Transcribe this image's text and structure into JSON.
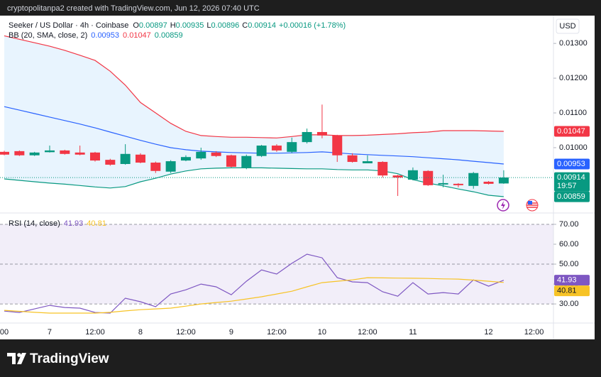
{
  "header": {
    "caption": "cryptopolitanpa2 created with TradingView.com, Jun 12, 2026 07:40 UTC"
  },
  "footer": {
    "brand": "TradingView"
  },
  "chart_data": [
    {
      "type": "candlestick",
      "title": "Seeker / US Dollar · 4h · Coinbase",
      "currency": "USD",
      "ohlc_labels": [
        "O",
        "H",
        "L",
        "C"
      ],
      "change": "+0.00016 (+1.78%)",
      "countdown": "19:57",
      "indicator": "BB (20, SMA, close, 2)",
      "up_color": "#089981",
      "down_color": "#f23645",
      "categories": [
        "00",
        null,
        null,
        "7",
        null,
        null,
        "12:00",
        null,
        null,
        "8",
        null,
        null,
        "12:00",
        null,
        null,
        "9",
        null,
        null,
        "12:00",
        null,
        null,
        "10",
        null,
        null,
        "12:00",
        null,
        null,
        "11",
        null,
        null,
        null,
        null,
        "12",
        null,
        null,
        "12:00"
      ],
      "open": [
        0.00988,
        0.0099,
        0.00978,
        0.00987,
        0.00992,
        0.00986,
        0.00986,
        0.00965,
        0.00953,
        0.0098,
        0.00957,
        0.00931,
        0.00963,
        0.00969,
        0.00986,
        0.00978,
        0.00943,
        0.00976,
        0.01006,
        0.00988,
        0.01016,
        0.01045,
        0.01035,
        0.00978,
        0.00955,
        0.00959,
        0.0092,
        0.00908,
        0.00933,
        0.00894,
        0.00896,
        0.0089,
        0.00902,
        0.00897,
        null,
        null
      ],
      "high": [
        0.00991,
        0.00992,
        0.00988,
        0.01006,
        0.00994,
        0.01006,
        0.00988,
        0.00968,
        0.0101,
        0.00984,
        0.0096,
        0.00964,
        0.00978,
        0.01,
        0.0099,
        0.0098,
        0.0098,
        0.01008,
        0.0101,
        0.01029,
        0.01055,
        0.01124,
        0.01037,
        0.00984,
        0.00978,
        0.00961,
        0.00922,
        0.00943,
        0.00935,
        0.00922,
        0.00898,
        0.0093,
        0.00904,
        0.00935,
        null,
        null
      ],
      "low": [
        0.00978,
        0.00976,
        0.00976,
        0.00986,
        0.0098,
        0.00978,
        0.0096,
        0.00948,
        0.00951,
        0.00955,
        0.00927,
        0.00927,
        0.00961,
        0.00965,
        0.00973,
        0.00943,
        0.00938,
        0.00973,
        0.00988,
        0.00984,
        0.01012,
        0.01027,
        0.00959,
        0.00957,
        0.00955,
        0.00914,
        0.00861,
        0.00906,
        0.0089,
        0.00886,
        0.00886,
        0.00882,
        0.00894,
        0.00896,
        null,
        null
      ],
      "close": [
        0.0098,
        0.00978,
        0.00986,
        0.00992,
        0.00982,
        0.0098,
        0.00963,
        0.00951,
        0.00982,
        0.00957,
        0.00933,
        0.00961,
        0.00973,
        0.00988,
        0.00976,
        0.00945,
        0.00976,
        0.01006,
        0.00992,
        0.01016,
        0.01045,
        0.01035,
        0.00978,
        0.00959,
        0.00961,
        0.0092,
        0.00914,
        0.00935,
        0.00892,
        0.00898,
        0.00892,
        0.00927,
        0.00896,
        0.00914,
        null,
        null
      ],
      "series": [
        {
          "name": "basis",
          "color": "#2962ff",
          "values": [
            0.01118,
            0.01108,
            0.01098,
            0.01088,
            0.01078,
            0.01068,
            0.01057,
            0.01045,
            0.01033,
            0.01021,
            0.0101,
            0.01,
            0.00994,
            0.0099,
            0.00988,
            0.00986,
            0.00985,
            0.00984,
            0.00984,
            0.00985,
            0.00986,
            0.00988,
            0.00985,
            0.00982,
            0.0098,
            0.00978,
            0.00976,
            0.00974,
            0.00971,
            0.00968,
            0.00965,
            0.00961,
            0.00957,
            0.00953,
            null,
            null
          ]
        },
        {
          "name": "upper",
          "color": "#f23645",
          "values": [
            0.01322,
            0.01312,
            0.01302,
            0.01292,
            0.0128,
            0.01266,
            0.01251,
            0.0122,
            0.0118,
            0.0113,
            0.011,
            0.0107,
            0.01047,
            0.01035,
            0.01032,
            0.0103,
            0.0103,
            0.01029,
            0.01028,
            0.01032,
            0.01037,
            0.01037,
            0.01035,
            0.01035,
            0.01036,
            0.01038,
            0.0104,
            0.01043,
            0.01045,
            0.01049,
            0.01049,
            0.01049,
            0.01048,
            0.01047,
            null,
            null
          ]
        },
        {
          "name": "lower",
          "color": "#089981",
          "values": [
            0.0091,
            0.00906,
            0.00902,
            0.00898,
            0.00895,
            0.00891,
            0.00887,
            0.00884,
            0.00888,
            0.00902,
            0.00912,
            0.00924,
            0.00933,
            0.00939,
            0.00941,
            0.00942,
            0.00942,
            0.00942,
            0.00941,
            0.0094,
            0.00939,
            0.00939,
            0.00937,
            0.00936,
            0.00936,
            0.00933,
            0.00925,
            0.00908,
            0.00898,
            0.0089,
            0.00881,
            0.00873,
            0.00863,
            0.00859,
            null,
            null
          ]
        }
      ],
      "ylim": [
        0.00812,
        0.0138
      ],
      "yticks": [
        {
          "value": 0.013,
          "label": "0.01300"
        },
        {
          "value": 0.012,
          "label": "0.01200"
        },
        {
          "value": 0.011,
          "label": "0.01100"
        },
        {
          "value": 0.01,
          "label": "0.01000"
        }
      ]
    },
    {
      "type": "line",
      "title": "RSI (14, close)",
      "series": [
        {
          "name": "RSI",
          "color": "#7e57c2",
          "values": [
            26.4,
            25.7,
            27.5,
            29.3,
            28.2,
            27.9,
            25.7,
            25.4,
            32.9,
            31.1,
            28.6,
            35.0,
            37.1,
            40.0,
            38.6,
            34.6,
            41.4,
            47.1,
            45.0,
            50.4,
            55.0,
            53.2,
            43.2,
            41.1,
            40.7,
            36.1,
            33.9,
            40.7,
            35.0,
            35.7,
            35.0,
            42.1,
            38.9,
            41.93,
            null,
            null
          ]
        },
        {
          "name": "RSI MA",
          "color": "#f7c325",
          "values": [
            26.8,
            26.3,
            25.8,
            25.4,
            25.4,
            25.4,
            25.4,
            25.8,
            26.5,
            27.1,
            27.5,
            27.9,
            28.9,
            30.0,
            30.7,
            31.4,
            32.5,
            33.6,
            35.0,
            36.4,
            38.6,
            40.7,
            41.4,
            42.1,
            43.2,
            43.1,
            43.0,
            42.9,
            42.8,
            42.6,
            42.5,
            42.0,
            41.4,
            40.81,
            null,
            null
          ]
        }
      ],
      "band_lines": [
        70,
        50,
        30
      ],
      "ylim": [
        20.4,
        75.7
      ],
      "yticks": [
        {
          "value": 70,
          "label": "70.00"
        },
        {
          "value": 60,
          "label": "60.00"
        },
        {
          "value": 50,
          "label": "50.00"
        },
        {
          "value": 40,
          "label": "40.00"
        },
        {
          "value": 30,
          "label": "30.00"
        }
      ]
    }
  ]
}
